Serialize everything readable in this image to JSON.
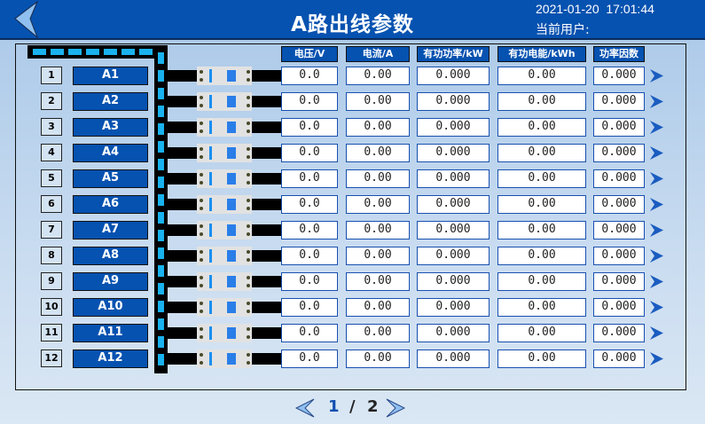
{
  "header": {
    "title": "A路出线参数",
    "datetime": "2021-01-20  17:01:44",
    "user_label": "当前用户:"
  },
  "columns": [
    "电压/V",
    "电流/A",
    "有功功率/kW",
    "有功电能/kWh",
    "功率因数"
  ],
  "rows": [
    {
      "index": "1",
      "name": "A1",
      "voltage": "0.0",
      "current": "0.00",
      "power": "0.000",
      "energy": "0.00",
      "pf": "0.000"
    },
    {
      "index": "2",
      "name": "A2",
      "voltage": "0.0",
      "current": "0.00",
      "power": "0.000",
      "energy": "0.00",
      "pf": "0.000"
    },
    {
      "index": "3",
      "name": "A3",
      "voltage": "0.0",
      "current": "0.00",
      "power": "0.000",
      "energy": "0.00",
      "pf": "0.000"
    },
    {
      "index": "4",
      "name": "A4",
      "voltage": "0.0",
      "current": "0.00",
      "power": "0.000",
      "energy": "0.00",
      "pf": "0.000"
    },
    {
      "index": "5",
      "name": "A5",
      "voltage": "0.0",
      "current": "0.00",
      "power": "0.000",
      "energy": "0.00",
      "pf": "0.000"
    },
    {
      "index": "6",
      "name": "A6",
      "voltage": "0.0",
      "current": "0.00",
      "power": "0.000",
      "energy": "0.00",
      "pf": "0.000"
    },
    {
      "index": "7",
      "name": "A7",
      "voltage": "0.0",
      "current": "0.00",
      "power": "0.000",
      "energy": "0.00",
      "pf": "0.000"
    },
    {
      "index": "8",
      "name": "A8",
      "voltage": "0.0",
      "current": "0.00",
      "power": "0.000",
      "energy": "0.00",
      "pf": "0.000"
    },
    {
      "index": "9",
      "name": "A9",
      "voltage": "0.0",
      "current": "0.00",
      "power": "0.000",
      "energy": "0.00",
      "pf": "0.000"
    },
    {
      "index": "10",
      "name": "A10",
      "voltage": "0.0",
      "current": "0.00",
      "power": "0.000",
      "energy": "0.00",
      "pf": "0.000"
    },
    {
      "index": "11",
      "name": "A11",
      "voltage": "0.0",
      "current": "0.00",
      "power": "0.000",
      "energy": "0.00",
      "pf": "0.000"
    },
    {
      "index": "12",
      "name": "A12",
      "voltage": "0.0",
      "current": "0.00",
      "power": "0.000",
      "energy": "0.00",
      "pf": "0.000"
    }
  ],
  "pager": {
    "current": "1",
    "separator": "/",
    "total": "2"
  },
  "colors": {
    "header": "#0652b0",
    "bus_dash": "#19b2ee",
    "value_border": "#1850b0"
  }
}
